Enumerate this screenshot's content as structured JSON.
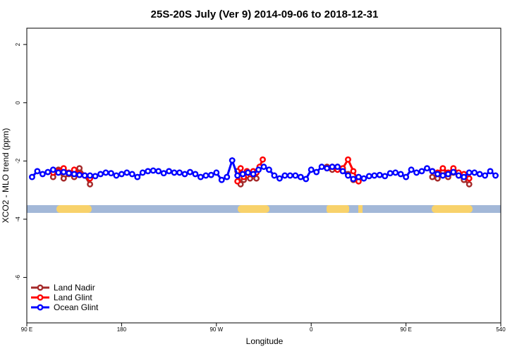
{
  "chart_data": {
    "type": "line",
    "title": "25S-20S July (Ver 9)   2014-09-06 to 2018-12-31",
    "x_label": "Longitude",
    "y_label": "XCO2 - MLO trend (ppm)",
    "xlim": [
      90,
      540
    ],
    "ylim": [
      -7.56,
      2.56
    ],
    "xticks": [
      {
        "value": 90,
        "label": "90 E"
      },
      180,
      {
        "value": 270,
        "label": "90 W"
      },
      {
        "value": 360,
        "label": "0"
      },
      {
        "value": 450,
        "label": "90 E"
      },
      540
    ],
    "yticks": [
      2,
      0,
      -2,
      -4,
      -6
    ],
    "legend": "bottom-left",
    "series": [
      {
        "name": "Land Nadir",
        "color": "#a52a2a",
        "x": [
          115,
          120,
          125,
          130,
          135,
          140,
          145,
          150,
          155,
          290,
          293,
          296,
          299,
          302,
          305,
          308,
          330,
          375,
          380,
          385,
          390,
          395,
          400,
          440,
          475,
          480,
          485,
          490,
          495,
          500,
          505,
          510
        ],
        "values": [
          -2.55,
          -2.3,
          -2.6,
          -2.45,
          -2.55,
          -2.25,
          -2.5,
          -2.8,
          null,
          -2.35,
          -2.8,
          -2.65,
          -2.5,
          -2.6,
          -2.45,
          -2.6,
          null,
          -2.2,
          -2.3,
          -2.2,
          -2.3,
          -2.45,
          -2.65,
          null,
          -2.55,
          -2.6,
          -2.35,
          -2.55,
          -2.4,
          -2.5,
          -2.65,
          -2.8
        ]
      },
      {
        "name": "Land Glint",
        "color": "#ff0000",
        "x": [
          115,
          120,
          125,
          130,
          135,
          140,
          145,
          150,
          155,
          290,
          293,
          296,
          299,
          302,
          305,
          308,
          311,
          314,
          345,
          375,
          380,
          385,
          390,
          395,
          400,
          405,
          440,
          475,
          480,
          485,
          490,
          495,
          500,
          505,
          510
        ],
        "values": [
          -2.4,
          -2.35,
          -2.25,
          -2.4,
          -2.3,
          -2.45,
          -2.5,
          -2.6,
          null,
          -2.7,
          -2.25,
          -2.55,
          -2.35,
          -2.45,
          -2.35,
          -2.4,
          -2.2,
          -1.95,
          null,
          -2.25,
          -2.2,
          -2.3,
          -2.25,
          -1.95,
          -2.35,
          -2.7,
          null,
          -2.35,
          -2.4,
          -2.25,
          -2.4,
          -2.25,
          -2.4,
          -2.45,
          -2.6
        ]
      },
      {
        "name": "Ocean Glint",
        "color": "#0000ff",
        "x": [
          95,
          100,
          105,
          110,
          115,
          120,
          125,
          130,
          135,
          140,
          145,
          150,
          155,
          160,
          165,
          170,
          175,
          180,
          185,
          190,
          195,
          200,
          205,
          210,
          215,
          220,
          225,
          230,
          235,
          240,
          245,
          250,
          255,
          260,
          265,
          270,
          275,
          280,
          285,
          290,
          295,
          300,
          305,
          310,
          315,
          320,
          325,
          330,
          335,
          340,
          345,
          350,
          355,
          360,
          365,
          370,
          375,
          380,
          385,
          390,
          395,
          400,
          405,
          410,
          415,
          420,
          425,
          430,
          435,
          440,
          445,
          450,
          455,
          460,
          465,
          470,
          475,
          480,
          485,
          490,
          495,
          500,
          505,
          510,
          515,
          520,
          525,
          530,
          535
        ],
        "values": [
          -2.55,
          -2.35,
          -2.45,
          -2.38,
          -2.3,
          -2.4,
          -2.38,
          -2.42,
          -2.45,
          -2.48,
          -2.5,
          -2.5,
          -2.52,
          -2.45,
          -2.4,
          -2.42,
          -2.5,
          -2.45,
          -2.4,
          -2.45,
          -2.55,
          -2.4,
          -2.35,
          -2.33,
          -2.35,
          -2.42,
          -2.35,
          -2.4,
          -2.4,
          -2.45,
          -2.38,
          -2.45,
          -2.55,
          -2.5,
          -2.48,
          -2.4,
          -2.65,
          -2.55,
          -1.98,
          -2.5,
          -2.45,
          -2.4,
          -2.45,
          -2.3,
          -2.2,
          -2.3,
          -2.5,
          -2.6,
          -2.5,
          -2.5,
          -2.5,
          -2.55,
          -2.62,
          -2.3,
          -2.38,
          -2.2,
          -2.25,
          -2.2,
          -2.2,
          -2.35,
          -2.5,
          -2.62,
          -2.55,
          -2.6,
          -2.52,
          -2.5,
          -2.48,
          -2.52,
          -2.42,
          -2.4,
          -2.45,
          -2.55,
          -2.3,
          -2.4,
          -2.35,
          -2.25,
          -2.35,
          -2.45,
          -2.5,
          -2.45,
          -2.38,
          -2.5,
          -2.55,
          -2.4,
          -2.4,
          -2.45,
          -2.5,
          -2.35,
          -2.5
        ]
      }
    ]
  }
}
